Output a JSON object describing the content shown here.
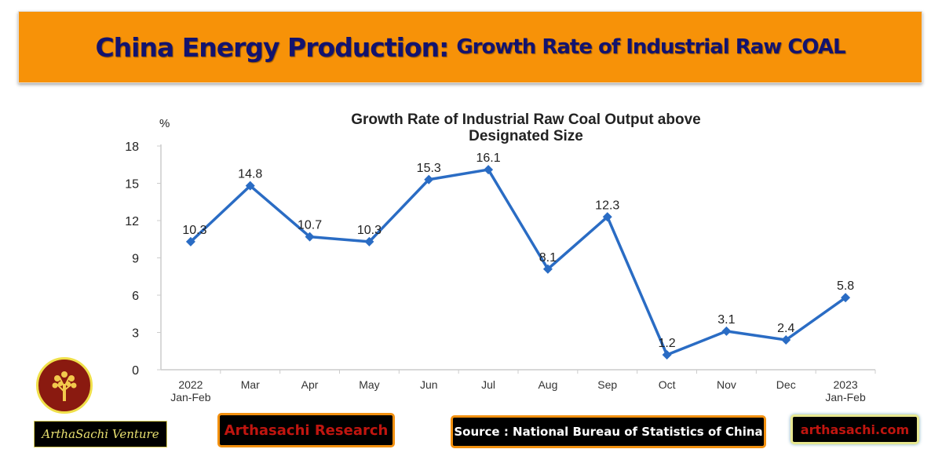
{
  "banner": {
    "title_main": "China Energy Production:",
    "title_sub": "Growth Rate of Industrial Raw COAL"
  },
  "chart_data": {
    "type": "line",
    "title": "Growth Rate of Industrial Raw Coal Output above Designated Size",
    "title_lines": [
      "Growth Rate of Industrial Raw Coal Output above",
      "Designated Size"
    ],
    "ylabel": "%",
    "ylim": [
      0,
      18
    ],
    "yticks": [
      0,
      3,
      6,
      9,
      12,
      15,
      18
    ],
    "categories": [
      [
        "2022",
        "Jan-Feb"
      ],
      [
        "Mar"
      ],
      [
        "Apr"
      ],
      [
        "May"
      ],
      [
        "Jun"
      ],
      [
        "Jul"
      ],
      [
        "Aug"
      ],
      [
        "Sep"
      ],
      [
        "Oct"
      ],
      [
        "Nov"
      ],
      [
        "Dec"
      ],
      [
        "2023",
        "Jan-Feb"
      ]
    ],
    "values": [
      10.3,
      14.8,
      10.7,
      10.3,
      15.3,
      16.1,
      8.1,
      12.3,
      1.2,
      3.1,
      2.4,
      5.8
    ],
    "color": "#2a6cc4",
    "grid": false
  },
  "footer": {
    "venture": "ArthaSachi Venture",
    "research": "Arthasachi Research",
    "source": "Source : National Bureau of Statistics of China",
    "website": "arthasachi.com"
  },
  "icons": {
    "logo": "tree-icon"
  }
}
